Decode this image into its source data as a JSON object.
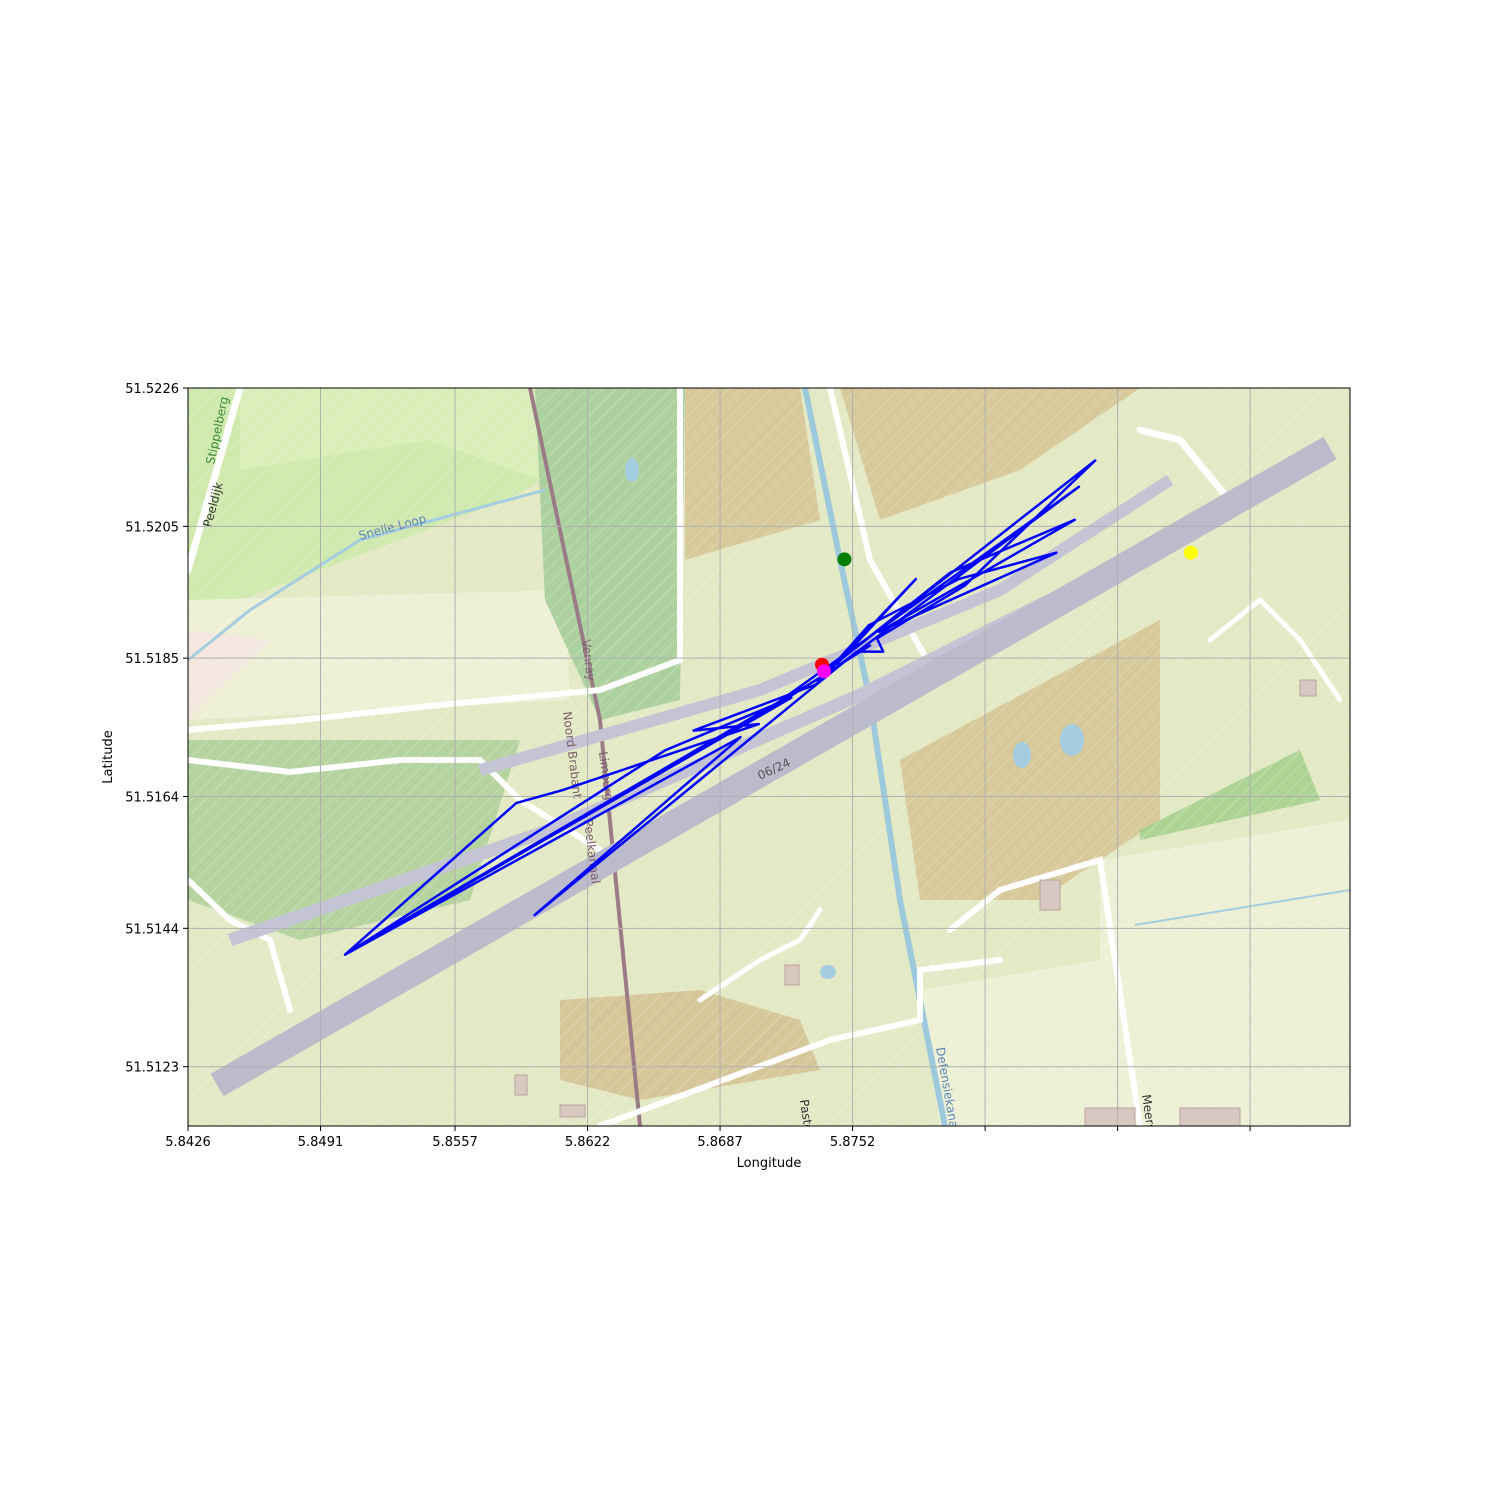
{
  "chart_data": {
    "type": "map-track",
    "xlabel": "Longitude",
    "ylabel": "Latitude",
    "xlim": [
      5.8426,
      5.8996
    ],
    "ylim": [
      51.5114,
      51.5226
    ],
    "x_ticks": [
      5.8426,
      5.8491,
      5.8557,
      5.8622,
      5.8687,
      5.8752,
      5.8817,
      5.8882,
      5.8947
    ],
    "x_tick_labels": [
      "5.8426",
      "5.8491",
      "5.8557",
      "5.8622",
      "5.8687",
      "5.8752",
      "",
      "",
      ""
    ],
    "y_ticks": [
      51.5123,
      51.5144,
      51.5164,
      51.5185,
      51.5205,
      51.5226
    ],
    "y_tick_labels": [
      "51.5123",
      "51.5144",
      "51.5164",
      "51.5185",
      "51.5205",
      "51.5226"
    ],
    "grid": true,
    "track_color": "#0000ff",
    "track": [
      [
        5.8744,
        51.5184
      ],
      [
        5.8783,
        51.5197
      ],
      [
        5.8734,
        51.5181
      ],
      [
        5.8674,
        51.5174
      ],
      [
        5.8706,
        51.5175
      ],
      [
        5.861,
        51.5165
      ],
      [
        5.8587,
        51.5163
      ],
      [
        5.8503,
        51.514
      ],
      [
        5.866,
        51.5171
      ],
      [
        5.8722,
        51.5179
      ],
      [
        5.8503,
        51.514
      ],
      [
        5.8736,
        51.5182
      ],
      [
        5.8503,
        51.514
      ],
      [
        5.8697,
        51.5173
      ],
      [
        5.8596,
        51.5146
      ],
      [
        5.8754,
        51.5186
      ],
      [
        5.8767,
        51.5186
      ],
      [
        5.8764,
        51.5188
      ],
      [
        5.8807,
        51.5196
      ],
      [
        5.8871,
        51.5215
      ],
      [
        5.8743,
        51.5184
      ],
      [
        5.88,
        51.5198
      ],
      [
        5.8861,
        51.5206
      ],
      [
        5.8765,
        51.5189
      ],
      [
        5.8852,
        51.5201
      ],
      [
        5.8804,
        51.5197
      ],
      [
        5.876,
        51.519
      ],
      [
        5.8737,
        51.5182
      ],
      [
        5.8863,
        51.5211
      ],
      [
        5.8705,
        51.5176
      ],
      [
        5.8761,
        51.5187
      ]
    ],
    "markers": [
      {
        "name": "green",
        "color": "#008000",
        "lon": 5.8748,
        "lat": 51.52
      },
      {
        "name": "yellow",
        "color": "#ffff00",
        "lon": 5.8918,
        "lat": 51.5201
      },
      {
        "name": "red",
        "color": "#ff0000",
        "lon": 5.8737,
        "lat": 51.5184
      },
      {
        "name": "magenta",
        "color": "#ff00ff",
        "lon": 5.8738,
        "lat": 51.5183
      }
    ]
  },
  "map_labels": {
    "runway": "06/24",
    "stippelberg": "Stippelberg",
    "peeldijk": "Peeldijk",
    "snelle_loop": "Snelle Loop",
    "venray": "Venray",
    "noord_brabant": "Noord Brabant",
    "limburg": "Limburg",
    "peelkanaal": "Peelkanaal",
    "defensiekanaal": "Defensiekanaal",
    "meerseweg": "Meers",
    "pastoor": "Pasto"
  },
  "colors": {
    "land": "#e4ecc8",
    "meadow": "#cde9ae",
    "farmland": "#eef0d5",
    "forest": "#add19e",
    "sand": "#dccda0",
    "runway": "#bbbbcc",
    "water": "#aad3df",
    "road": "#ffffff"
  }
}
